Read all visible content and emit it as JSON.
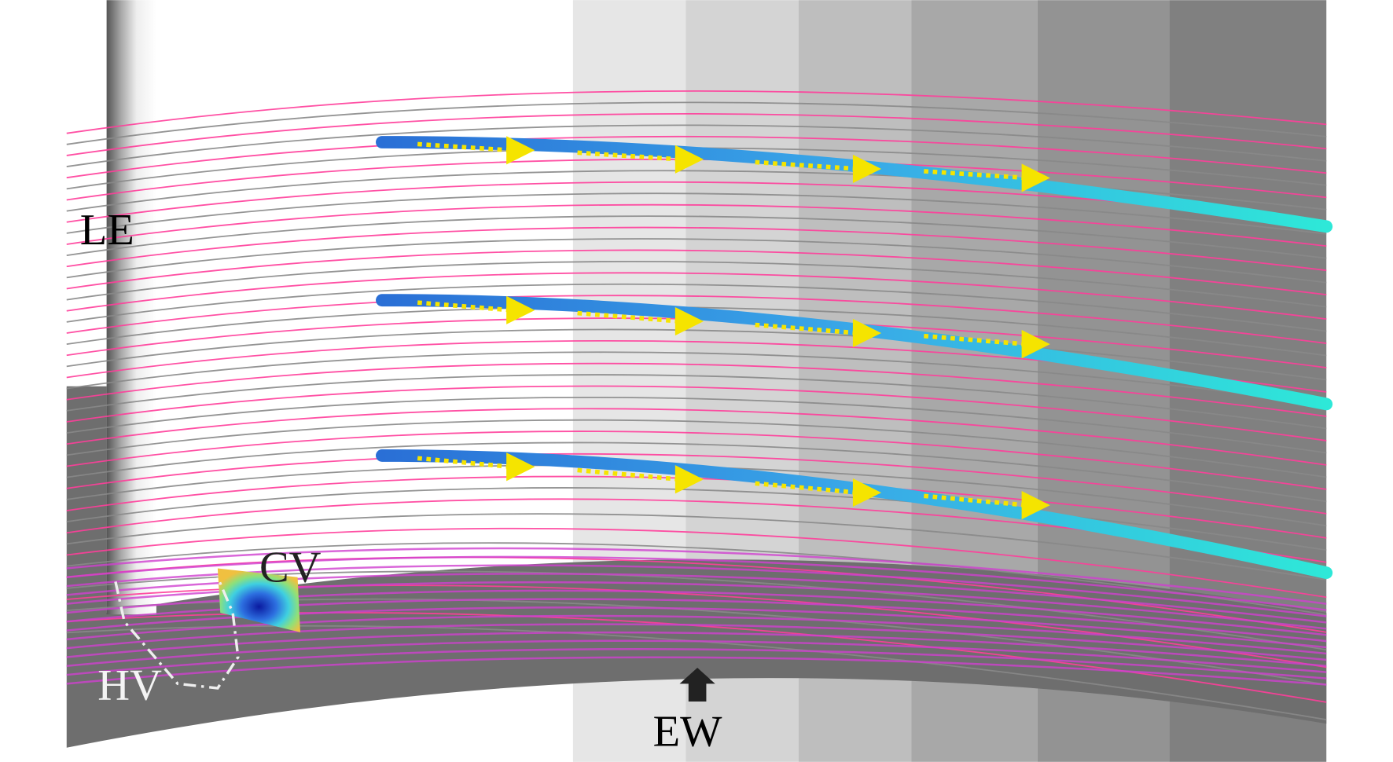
{
  "annotations": {
    "leading_edge": "LE",
    "corner_vortex": "CV",
    "horseshoe_vortex": "HV",
    "endwall": "EW"
  }
}
